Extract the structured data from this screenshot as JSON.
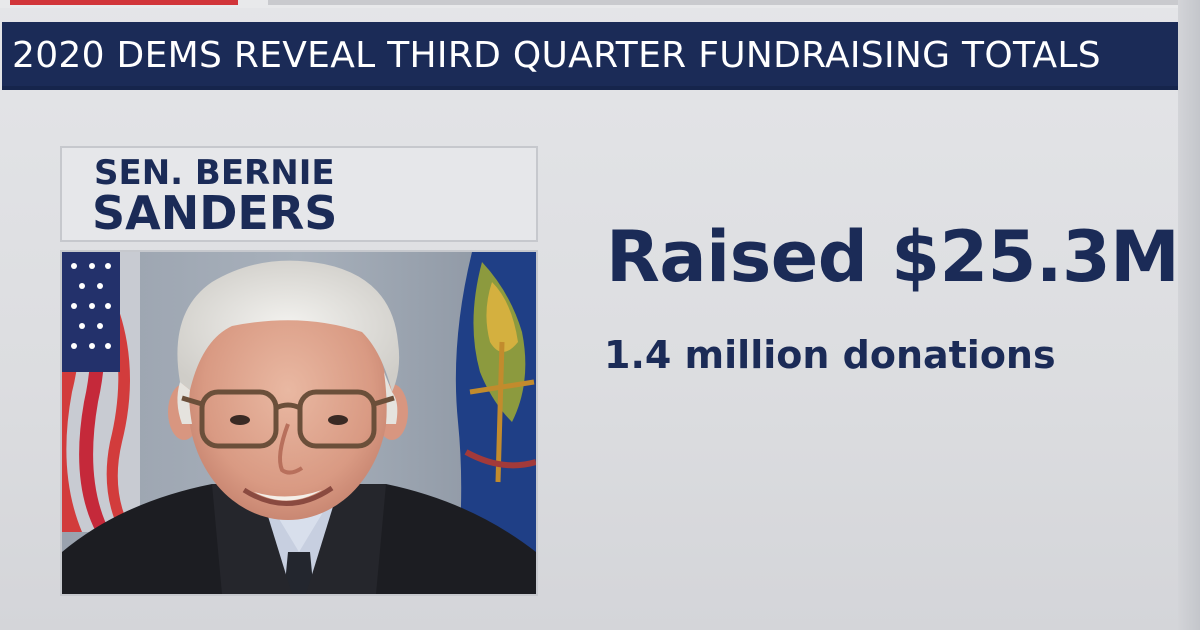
{
  "headline": {
    "text": "2020 DEMS REVEAL THIRD QUARTER FUNDRAISING TOTALS"
  },
  "candidate": {
    "title_line": "SEN. BERNIE",
    "name_line": "SANDERS",
    "photo_description": "portrait-photo"
  },
  "stats": {
    "raised_label": "Raised $25.3M",
    "donations_label": "1.4 million donations"
  },
  "colors": {
    "navy": "#1b2b57",
    "panel": "#e4e5e8",
    "accent_red": "#d1353a"
  }
}
